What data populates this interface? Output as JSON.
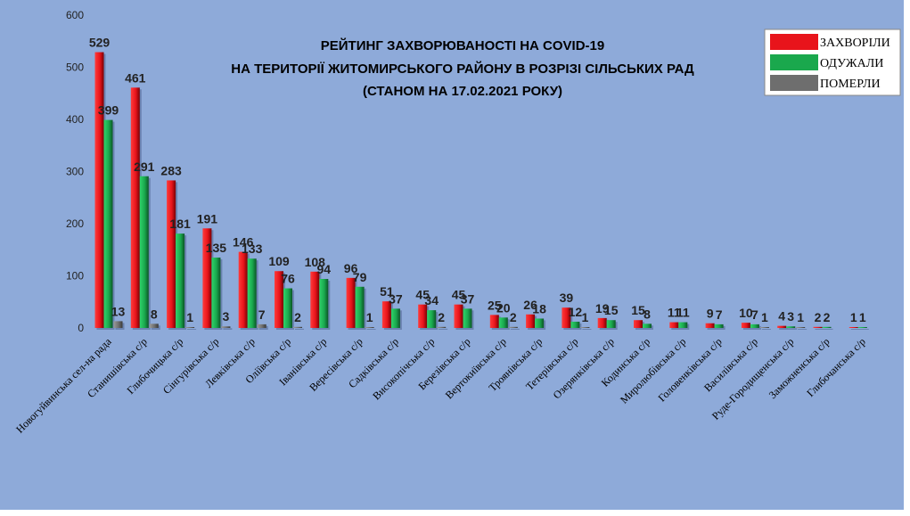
{
  "chart_data": {
    "type": "bar",
    "title": [
      "РЕЙТИНГ ЗАХВОРЮВАНОСТІ НА COVID-19",
      "НА ТЕРИТОРІЇ ЖИТОМИРСЬКОГО РАЙОНУ В РОЗРІЗІ СІЛЬСЬКИХ РАД",
      "(СТАНОМ НА 17.02.2021 РОКУ)"
    ],
    "ylim": [
      0,
      600
    ],
    "yticks": [
      0,
      100,
      200,
      300,
      400,
      500,
      600
    ],
    "grid": false,
    "legend_position": "top-right",
    "categories": [
      "Новогуйвинська сел-на рада",
      "Станишівська с/р",
      "Глибочицька с/р",
      "Сінгурівська с/р",
      "Левківська с/р",
      "Оліївська с/р",
      "Іванівська с/р",
      "Вересівська с/р",
      "Садківська с/р",
      "Високопічська с/р",
      "Березівська с/р",
      "Вертокиївська с/р",
      "Троянівська с/р",
      "Тетерівська с/р",
      "Озерянківська с/р",
      "Кодинська с/р",
      "Миролюбівська с/р",
      "Головенківська с/р",
      "Василівська с/р",
      "Руде-Городищенська с/р",
      "Заможненська с/р",
      "Глибочанська с/р"
    ],
    "series": [
      {
        "name": "ЗАХВОРІЛИ",
        "color": "#e8141b",
        "values": [
          529,
          461,
          283,
          191,
          146,
          109,
          108,
          96,
          51,
          45,
          45,
          25,
          26,
          39,
          19,
          15,
          11,
          9,
          10,
          4,
          2,
          1
        ],
        "labels": [
          "529",
          "461",
          "283",
          "191",
          "146",
          "109",
          "108",
          "96",
          "51",
          "45",
          "45",
          "25",
          "26",
          "39",
          "19",
          "15",
          "11",
          "9",
          "10",
          "4",
          "2",
          "1"
        ]
      },
      {
        "name": "ОДУЖАЛИ",
        "color": "#1aa84d",
        "values": [
          399,
          291,
          181,
          135,
          133,
          76,
          94,
          79,
          37,
          34,
          37,
          20,
          18,
          12,
          15,
          8,
          11,
          7,
          7,
          3,
          2,
          1
        ],
        "labels": [
          "399",
          "291",
          "181",
          "135",
          "133",
          "76",
          "94",
          "79",
          "37",
          "34",
          "37",
          "20",
          "18",
          "12",
          "15",
          "8",
          "11",
          "7",
          "7",
          "3",
          "2",
          "1"
        ]
      },
      {
        "name": "ПОМЕРЛИ",
        "color": "#6e6e6e",
        "values": [
          13,
          8,
          1,
          3,
          7,
          2,
          0,
          1,
          0,
          2,
          0,
          2,
          0,
          1,
          0,
          0,
          0,
          0,
          1,
          1,
          0,
          0
        ],
        "labels": [
          "13",
          "8",
          "1",
          "3",
          "7",
          "2",
          "",
          "1",
          "",
          "2",
          "",
          "2",
          "",
          "1",
          "",
          "",
          "",
          "",
          "1",
          "1",
          "",
          ""
        ]
      }
    ]
  }
}
